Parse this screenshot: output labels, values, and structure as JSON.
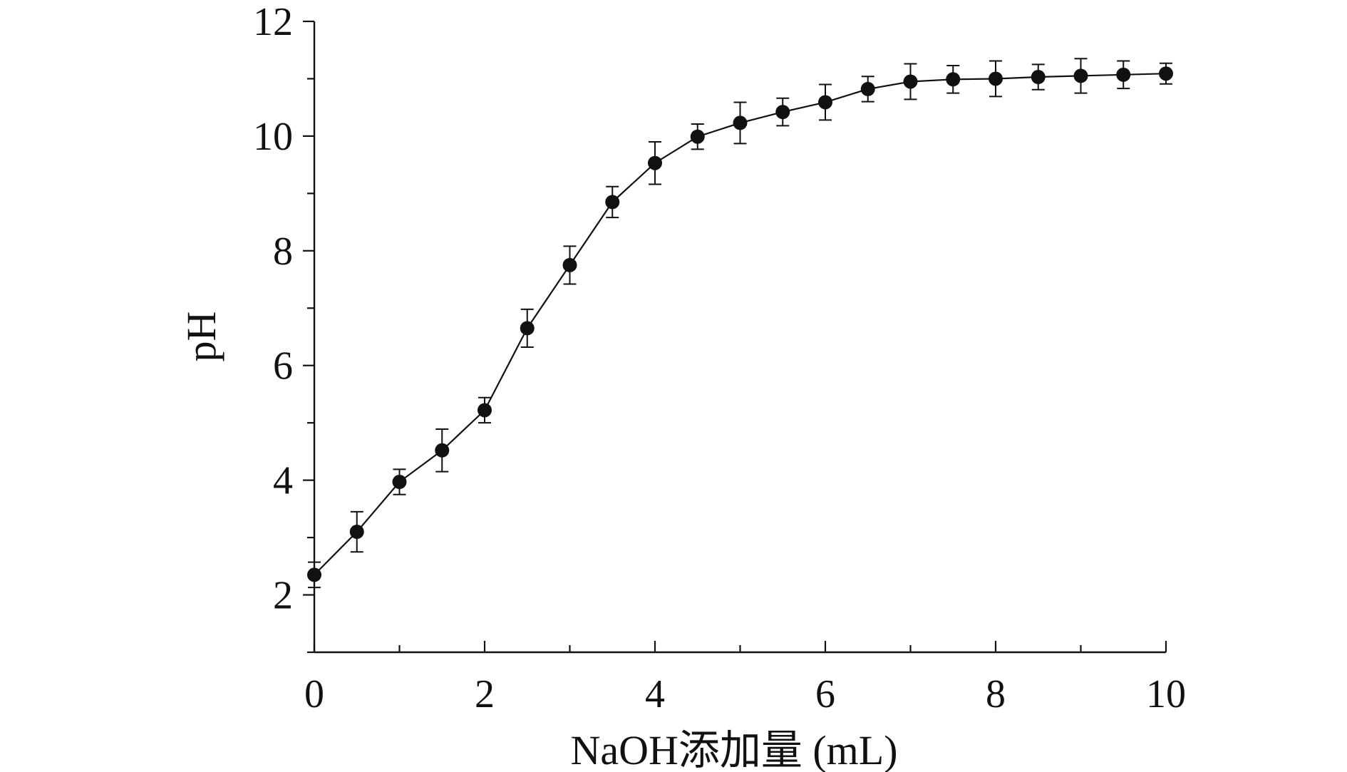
{
  "chart_data": {
    "type": "line",
    "title": "",
    "xlabel": "NaOH添加量 (mL)",
    "ylabel": "pH",
    "xlim": [
      0,
      10
    ],
    "ylim": [
      1,
      12
    ],
    "x_ticks": [
      0,
      2,
      4,
      6,
      8,
      10
    ],
    "y_ticks": [
      2,
      4,
      6,
      8,
      10,
      12
    ],
    "x_tick_labels": [
      "0",
      "2",
      "4",
      "6",
      "8",
      "10"
    ],
    "y_tick_labels": [
      "2",
      "4",
      "6",
      "8",
      "10",
      "12"
    ],
    "grid": false,
    "legend": "none",
    "colors": {
      "line": "#111111",
      "marker": "#111111",
      "axis": "#111111"
    },
    "series": [
      {
        "x": [
          0,
          0.5,
          1,
          1.5,
          2,
          2.5,
          3,
          3.5,
          4,
          4.5,
          5,
          5.5,
          6,
          6.5,
          7,
          7.5,
          8,
          8.5,
          9,
          9.5,
          10
        ],
        "y": [
          2.35,
          3.1,
          3.97,
          4.52,
          5.22,
          6.65,
          7.75,
          8.85,
          9.53,
          9.99,
          10.23,
          10.42,
          10.59,
          10.82,
          10.95,
          10.99,
          11.0,
          11.03,
          11.05,
          11.07,
          11.09
        ],
        "error": [
          0.22,
          0.35,
          0.22,
          0.37,
          0.22,
          0.33,
          0.33,
          0.27,
          0.37,
          0.22,
          0.36,
          0.24,
          0.31,
          0.22,
          0.31,
          0.24,
          0.31,
          0.22,
          0.3,
          0.24,
          0.18
        ]
      }
    ]
  }
}
